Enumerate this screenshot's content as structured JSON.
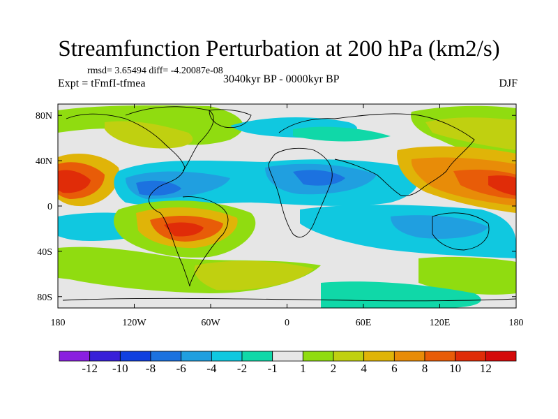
{
  "title": "Streamfunction Perturbation at 200 hPa (km2/s)",
  "stats": "rmsd= 3.65494  diff= -4.20087e-08",
  "experiment": "Expt = tFmfI-tfmea",
  "period": "3040kyr BP - 0000kyr BP",
  "season": "DJF",
  "axes": {
    "lon_ticks": [
      "180",
      "120W",
      "60W",
      "0",
      "60E",
      "120E",
      "180"
    ],
    "lat_ticks": [
      "80N",
      "40N",
      "0",
      "40S",
      "80S"
    ]
  },
  "colorbar": {
    "labels": [
      "-12",
      "-10",
      "-8",
      "-6",
      "-4",
      "-2",
      "-1",
      "1",
      "2",
      "4",
      "6",
      "8",
      "10",
      "12"
    ],
    "colors": [
      "#8a20e0",
      "#3820d8",
      "#1040e0",
      "#1c72e0",
      "#209fe0",
      "#10c8e0",
      "#10d8a8",
      "#e6e6e6",
      "#90dc10",
      "#c0d010",
      "#e0b408",
      "#e88c08",
      "#e85c08",
      "#e02c08",
      "#d40a0a"
    ]
  },
  "legend_fill": {
    "background": "#e6e6e6",
    "coast": "#000000"
  }
}
